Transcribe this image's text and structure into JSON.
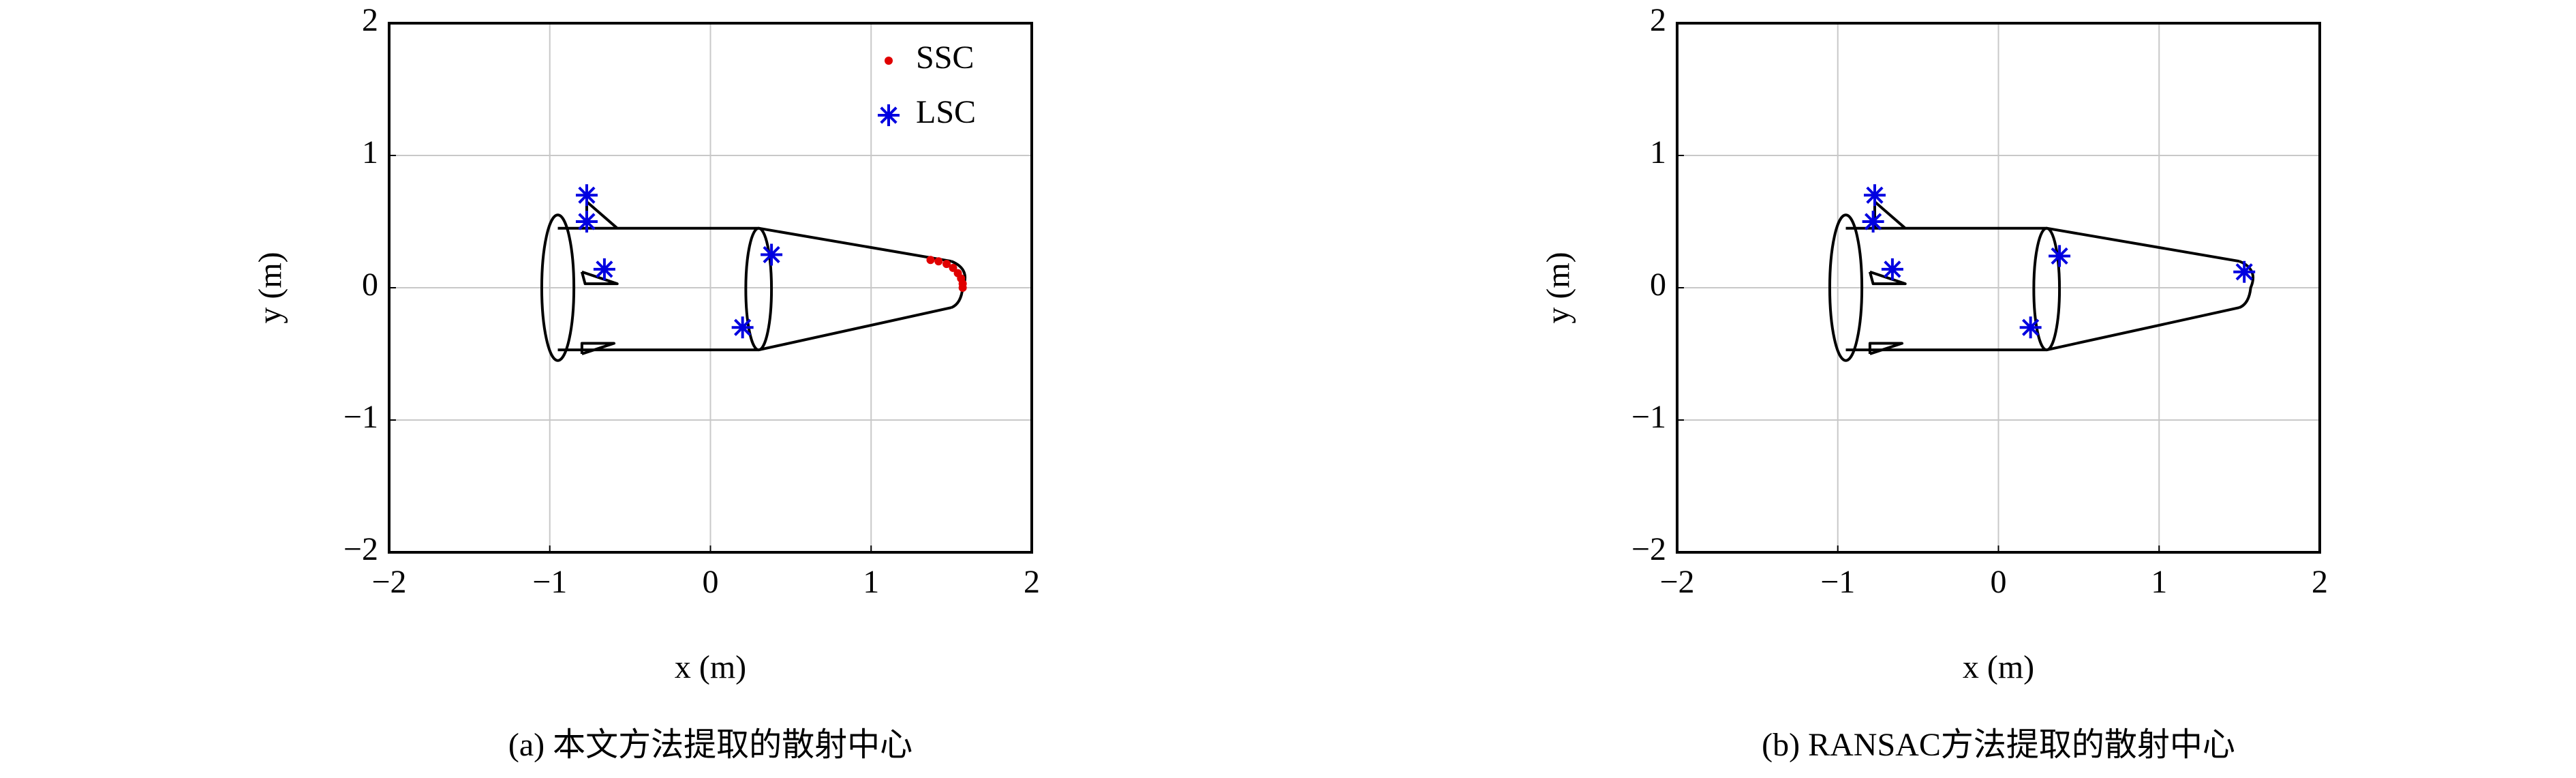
{
  "chart_data": [
    {
      "type": "scatter",
      "caption": "(a) 本文方法提取的散射中心",
      "xlabel": "x (m)",
      "ylabel": "y (m)",
      "xlim": [
        -2,
        2
      ],
      "ylim": [
        -2,
        2
      ],
      "xticks": [
        {
          "value": -2,
          "label": "−2"
        },
        {
          "value": -1,
          "label": "−1"
        },
        0,
        1,
        2
      ],
      "yticks": [
        {
          "value": -2,
          "label": "−2"
        },
        {
          "value": -1,
          "label": "−1"
        },
        0,
        1,
        2
      ],
      "grid": true,
      "legend": "upper right",
      "series": [
        {
          "name": "SSC",
          "color": "#e00000",
          "marker": "dot",
          "x": [
            1.37,
            1.42,
            1.47,
            1.51,
            1.54,
            1.56,
            1.57,
            1.57
          ],
          "values": [
            0.21,
            0.2,
            0.18,
            0.15,
            0.11,
            0.07,
            0.03,
            0.0
          ]
        },
        {
          "name": "LSC",
          "color": "#0000e0",
          "marker": "asterisk",
          "x": [
            -0.77,
            -0.77,
            -0.66,
            0.38,
            0.2
          ],
          "values": [
            0.7,
            0.5,
            0.14,
            0.25,
            -0.3
          ]
        }
      ]
    },
    {
      "type": "scatter",
      "caption": "(b) RANSAC方法提取的散射中心",
      "xlabel": "x (m)",
      "ylabel": "y (m)",
      "xlim": [
        -2,
        2
      ],
      "ylim": [
        -2,
        2
      ],
      "xticks": [
        {
          "value": -2,
          "label": "−2"
        },
        {
          "value": -1,
          "label": "−1"
        },
        0,
        1,
        2
      ],
      "yticks": [
        {
          "value": -2,
          "label": "−2"
        },
        {
          "value": -1,
          "label": "−1"
        },
        0,
        1,
        2
      ],
      "grid": true,
      "series": [
        {
          "color": "#0000e0",
          "marker": "asterisk",
          "x": [
            -0.77,
            -0.78,
            -0.66,
            0.38,
            0.2,
            1.53
          ],
          "values": [
            0.7,
            0.5,
            0.14,
            0.24,
            -0.3,
            0.12
          ]
        }
      ]
    }
  ]
}
